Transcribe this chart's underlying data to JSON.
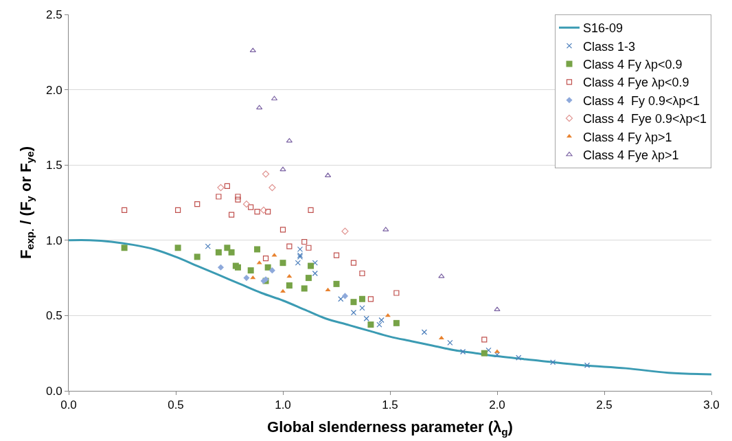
{
  "chart_data": {
    "type": "scatter",
    "xlabel": "Global slenderness parameter (λ$_{g}$)",
    "ylabel": "F$_{exp.}$ / (F$_{y}$ or F$_{ye}$)",
    "xlim": [
      0,
      3.0
    ],
    "xticks": [
      {
        "value": 0,
        "label": "0.0"
      },
      0.5,
      {
        "value": 1,
        "label": "1.0"
      },
      1.5,
      {
        "value": 2,
        "label": "2.0"
      },
      2.5,
      {
        "value": 3,
        "label": "3.0"
      }
    ],
    "ylim": [
      0,
      2.5
    ],
    "yticks": [
      {
        "value": 0,
        "label": "0.0"
      },
      0.5,
      {
        "value": 1,
        "label": "1.0"
      },
      1.5,
      {
        "value": 2,
        "label": "2.0"
      },
      2.5
    ],
    "grid": "y",
    "legend": "top right",
    "series": [
      {
        "name": "S16-09",
        "type": "line",
        "color": "#3b9bb3",
        "marker": "none",
        "x": [
          0,
          0.1,
          0.2,
          0.3,
          0.4,
          0.5,
          0.6,
          0.7,
          0.8,
          0.9,
          1.0,
          1.1,
          1.2,
          1.3,
          1.4,
          1.5,
          1.6,
          1.7,
          1.8,
          1.9,
          2.0,
          2.2,
          2.4,
          2.6,
          2.8,
          3.0
        ],
        "values": [
          1.0,
          1.0,
          0.99,
          0.97,
          0.94,
          0.89,
          0.83,
          0.77,
          0.71,
          0.65,
          0.6,
          0.54,
          0.48,
          0.44,
          0.4,
          0.36,
          0.33,
          0.3,
          0.27,
          0.25,
          0.23,
          0.2,
          0.17,
          0.15,
          0.12,
          0.11
        ]
      },
      {
        "name": "Class 1-3",
        "color": "#4a7ebb",
        "marker": "cross",
        "x": [
          0.65,
          1.08,
          1.08,
          1.08,
          1.07,
          1.15,
          1.15,
          1.27,
          1.33,
          1.37,
          1.39,
          1.45,
          1.46,
          1.66,
          1.78,
          1.84,
          1.96,
          2.0,
          2.1,
          2.26,
          2.42
        ],
        "values": [
          0.96,
          0.94,
          0.9,
          0.89,
          0.85,
          0.85,
          0.78,
          0.61,
          0.52,
          0.55,
          0.48,
          0.44,
          0.47,
          0.39,
          0.32,
          0.26,
          0.27,
          0.24,
          0.22,
          0.19,
          0.17
        ]
      },
      {
        "name": "Class 4 Fy λp<0.9",
        "color": "#77a347",
        "marker": "square",
        "x": [
          0.26,
          0.51,
          0.6,
          0.7,
          0.74,
          0.76,
          0.88,
          0.78,
          0.79,
          0.85,
          0.93,
          0.92,
          1.0,
          1.03,
          1.1,
          1.12,
          1.13,
          1.25,
          1.33,
          1.37,
          1.41,
          1.53,
          1.94
        ],
        "values": [
          0.95,
          0.95,
          0.89,
          0.92,
          0.95,
          0.92,
          0.94,
          0.83,
          0.82,
          0.8,
          0.82,
          0.73,
          0.85,
          0.7,
          0.68,
          0.75,
          0.83,
          0.71,
          0.59,
          0.61,
          0.44,
          0.45,
          0.25
        ]
      },
      {
        "name": "Class 4 Fye λp<0.9",
        "color": "#c0504d",
        "marker": "square-open",
        "x": [
          0.26,
          0.51,
          0.6,
          0.7,
          0.74,
          0.79,
          0.79,
          0.76,
          0.85,
          0.88,
          0.93,
          1.13,
          1.0,
          1.1,
          1.03,
          1.12,
          0.92,
          1.25,
          1.33,
          1.37,
          1.53,
          1.41,
          1.94
        ],
        "values": [
          1.2,
          1.2,
          1.24,
          1.29,
          1.36,
          1.29,
          1.27,
          1.17,
          1.22,
          1.19,
          1.19,
          1.2,
          1.07,
          0.99,
          0.96,
          0.95,
          0.88,
          0.9,
          0.85,
          0.78,
          0.65,
          0.61,
          0.34
        ]
      },
      {
        "name": "Class 4  Fy 0.9<λp<1",
        "color": "#8ea9db",
        "marker": "diamond",
        "x": [
          0.71,
          0.83,
          0.91,
          0.92,
          0.95,
          1.29
        ],
        "values": [
          0.82,
          0.75,
          0.73,
          0.74,
          0.8,
          0.63
        ]
      },
      {
        "name": "Class 4  Fye 0.9<λp<1",
        "color": "#e0928f",
        "marker": "diamond-open",
        "x": [
          0.71,
          0.92,
          0.95,
          0.83,
          0.91,
          1.29
        ],
        "values": [
          1.35,
          1.44,
          1.35,
          1.24,
          1.2,
          1.06
        ]
      },
      {
        "name": "Class 4 Fy λp>1",
        "color": "#e8822f",
        "marker": "triangle",
        "x": [
          0.96,
          0.89,
          0.86,
          1.03,
          1.0,
          1.21,
          1.49,
          1.74,
          2.0
        ],
        "values": [
          0.9,
          0.85,
          0.75,
          0.76,
          0.66,
          0.67,
          0.5,
          0.35,
          0.26
        ]
      },
      {
        "name": "Class 4 Fye λp>1",
        "color": "#7b62a3",
        "marker": "triangle-open",
        "x": [
          0.86,
          0.96,
          0.89,
          1.03,
          1.0,
          1.21,
          1.48,
          1.74,
          2.0
        ],
        "values": [
          2.26,
          1.94,
          1.88,
          1.66,
          1.47,
          1.43,
          1.07,
          0.76,
          0.54
        ]
      }
    ]
  }
}
